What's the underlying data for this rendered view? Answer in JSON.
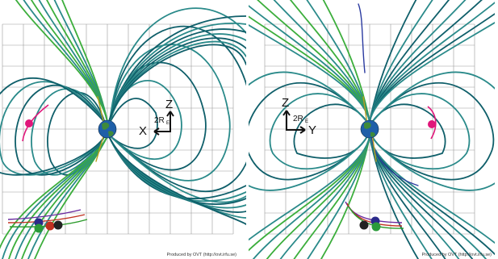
{
  "panels": [
    {
      "id": "left",
      "axes": {
        "horizontal": "X",
        "vertical": "Z",
        "scale": "2R",
        "scale_sub": "E"
      },
      "credit": "Produced by OVT (http://ovt.irfu.se)"
    },
    {
      "id": "right",
      "axes": {
        "horizontal": "Y",
        "vertical": "Z",
        "scale": "2R",
        "scale_sub": "E"
      },
      "credit": "Produced by OVT (http://ovt.irfu.se)"
    }
  ],
  "colors": {
    "grid": "#9a9a9a",
    "field_line": "#2a8a8a",
    "field_line_dark": "#0f5f6a",
    "field_line_inner": "#3cae3c",
    "field_line_core": "#b8a020",
    "spacecraft": "#e0167a",
    "earth_ocean": "#1f5fa8",
    "earth_land": "#3f8a3a"
  }
}
